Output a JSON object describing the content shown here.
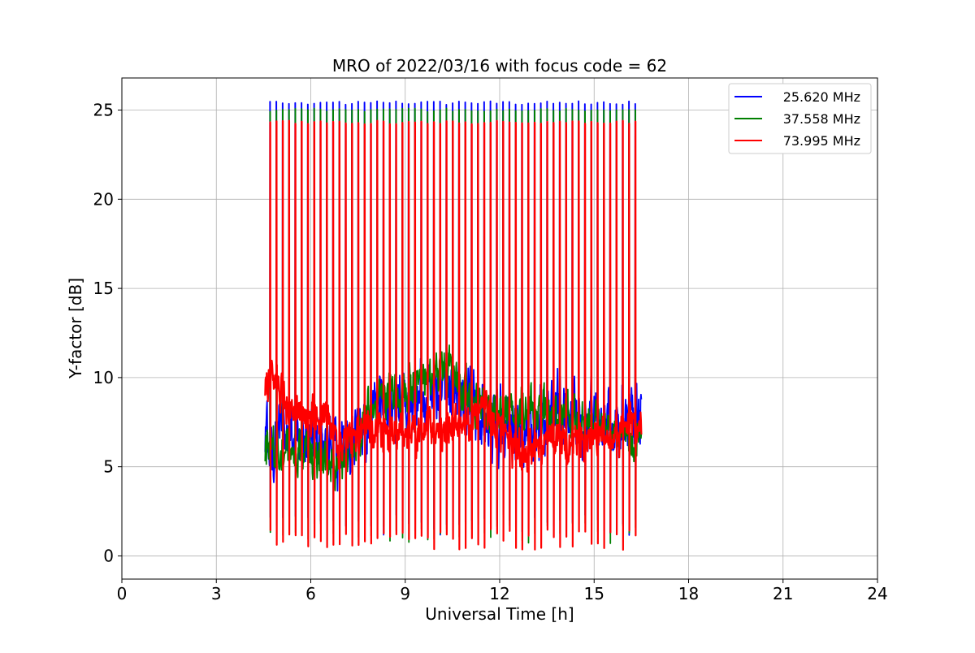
{
  "chart_data": {
    "type": "line",
    "title": "MRO of 2022/03/16 with focus code = 62",
    "xlabel": "Universal Time [h]",
    "ylabel": "Y-factor [dB]",
    "xlim": [
      0,
      24
    ],
    "ylim": [
      -1.3,
      26.8
    ],
    "xticks": [
      0,
      3,
      6,
      9,
      12,
      15,
      18,
      21,
      24
    ],
    "yticks": [
      0,
      5,
      10,
      15,
      20,
      25
    ],
    "grid": true,
    "legend_position": "top-right",
    "data_start_hour": 4.55,
    "data_end_hour": 16.5,
    "spike_interval_hours": 0.2,
    "series": [
      {
        "name": "25.620 MHz",
        "color": "#0000ff",
        "peak_value": 25.4,
        "dip_value": 1.7,
        "baseline": [
          [
            4.55,
            6.5
          ],
          [
            5,
            7.0
          ],
          [
            6,
            6.8
          ],
          [
            7,
            6.3
          ],
          [
            8,
            8.2
          ],
          [
            9,
            8.5
          ],
          [
            10,
            9.5
          ],
          [
            11,
            8.8
          ],
          [
            12,
            7.3
          ],
          [
            13,
            7.2
          ],
          [
            14,
            8.3
          ],
          [
            15,
            7.6
          ],
          [
            16,
            7.2
          ],
          [
            16.5,
            8.4
          ]
        ],
        "noise_amplitude": 1.6
      },
      {
        "name": "37.558 MHz",
        "color": "#008000",
        "peak_value": 25.0,
        "dip_value": 1.3,
        "baseline": [
          [
            4.55,
            5.5
          ],
          [
            5,
            6.2
          ],
          [
            6,
            5.6
          ],
          [
            7,
            5.0
          ],
          [
            8,
            8.6
          ],
          [
            9,
            9.5
          ],
          [
            10,
            10.2
          ],
          [
            10.5,
            10.6
          ],
          [
            11,
            9.0
          ],
          [
            12,
            7.8
          ],
          [
            13,
            8.2
          ],
          [
            14,
            7.9
          ],
          [
            15,
            7.6
          ],
          [
            16,
            6.8
          ],
          [
            16.5,
            6.5
          ]
        ],
        "noise_amplitude": 1.0
      },
      {
        "name": "73.995 MHz",
        "color": "#ff0000",
        "peak_value": 24.3,
        "dip_value": 0.9,
        "baseline": [
          [
            4.55,
            9.5
          ],
          [
            4.9,
            10.0
          ],
          [
            5.2,
            8.0
          ],
          [
            6,
            8.2
          ],
          [
            7,
            6.5
          ],
          [
            8,
            6.9
          ],
          [
            9,
            7.0
          ],
          [
            10,
            7.0
          ],
          [
            11,
            7.2
          ],
          [
            11.4,
            8.5
          ],
          [
            12,
            6.9
          ],
          [
            13,
            5.6
          ],
          [
            13.5,
            6.3
          ],
          [
            14,
            6.6
          ],
          [
            15,
            6.6
          ],
          [
            16,
            7.0
          ],
          [
            16.5,
            7.6
          ]
        ],
        "noise_amplitude": 0.9
      }
    ]
  }
}
